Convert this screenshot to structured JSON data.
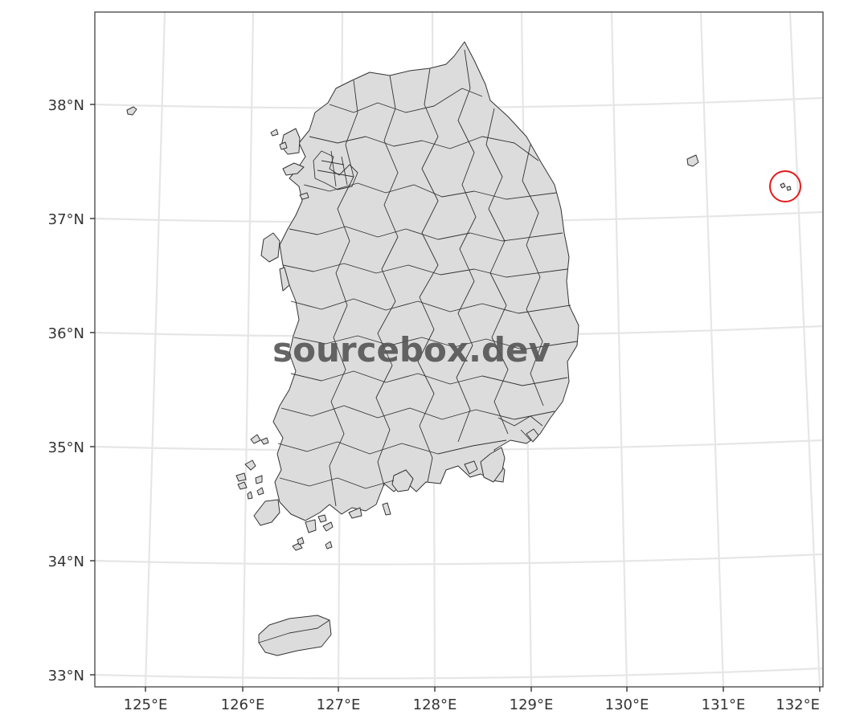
{
  "map": {
    "watermark": "sourcebox.dev",
    "x_ticks": [
      "125°E",
      "126°E",
      "127°E",
      "128°E",
      "129°E",
      "130°E",
      "131°E",
      "132°E"
    ],
    "y_ticks": [
      "38°N",
      "37°N",
      "36°N",
      "35°N",
      "34°N",
      "33°N"
    ],
    "land_color": "#dcdcdc",
    "border_color": "#333333",
    "grid_color": "#e6e6e6",
    "highlight_color": "#e31a1c",
    "highlight_feature": "Dokdo islets"
  }
}
